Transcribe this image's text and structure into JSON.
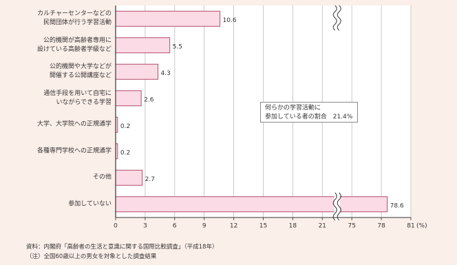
{
  "chart_data": {
    "type": "hbar",
    "categories": [
      "カルチャーセンターなどの\n民間団体が行う学習活動",
      "公的機関が高齢者専用に\n設けている高齢者学級など",
      "公的機関や大学などが\n開催する公開講座など",
      "通信手段を用いて自宅に\nいながらできる学習",
      "大学、大学院への正規通学",
      "各種専門学校への正規通学",
      "その他",
      "参加していない"
    ],
    "values": [
      10.6,
      5.5,
      4.3,
      2.6,
      0.2,
      0.2,
      2.7,
      78.6
    ],
    "color": "#fbdbe5",
    "edge_color": "#b34a6a",
    "xlim": [
      0,
      81
    ],
    "xticks": [
      0,
      3,
      6,
      9,
      12,
      15,
      18,
      21,
      75,
      78,
      81
    ],
    "x_break": [
      21,
      75
    ],
    "x_unit": "(%)",
    "grid": true,
    "annotation": "何らかの学習活動に\n参加している者の割合　21.4%",
    "source": "資料：内閣府「高齢者の生活と意識に関する国際比較調査」（平成18年）",
    "note": "（注）全国60歳以上の男女を対象とした調査結果"
  }
}
